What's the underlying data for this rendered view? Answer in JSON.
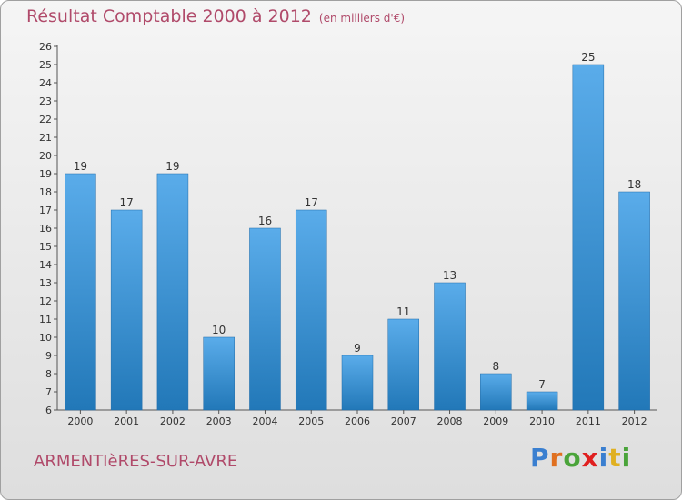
{
  "header": {
    "title": "Résultat Comptable 2000 à 2012",
    "subtitle": "(en milliers d'€)"
  },
  "footer": {
    "commune": "ARMENTIèRES-SUR-AVRE",
    "logo": "Proxiti"
  },
  "colors": {
    "title": "#b04a6a",
    "bar_top": "#5aacea",
    "bar_bottom": "#2278b8",
    "logo_letters": [
      "#3a7fd0",
      "#e07020",
      "#4aa43a",
      "#e02020",
      "#3a7fd0",
      "#e0b020",
      "#4aa43a"
    ]
  },
  "chart_data": {
    "type": "bar",
    "title": "Résultat Comptable 2000 à 2012",
    "subtitle": "(en milliers d'€)",
    "categories": [
      "2000",
      "2001",
      "2002",
      "2003",
      "2004",
      "2005",
      "2006",
      "2007",
      "2008",
      "2009",
      "2010",
      "2011",
      "2012"
    ],
    "values": [
      19,
      17,
      19,
      10,
      16,
      17,
      9,
      11,
      13,
      8,
      7,
      25,
      18
    ],
    "ylim": [
      6,
      26
    ],
    "yticks": [
      "6",
      "7",
      "8",
      "9",
      "10",
      "11",
      "12",
      "13",
      "14",
      "15",
      "16",
      "17",
      "18",
      "19",
      "20",
      "21",
      "22",
      "23",
      "24",
      "25",
      "26"
    ],
    "grid": false,
    "legend": "none"
  }
}
